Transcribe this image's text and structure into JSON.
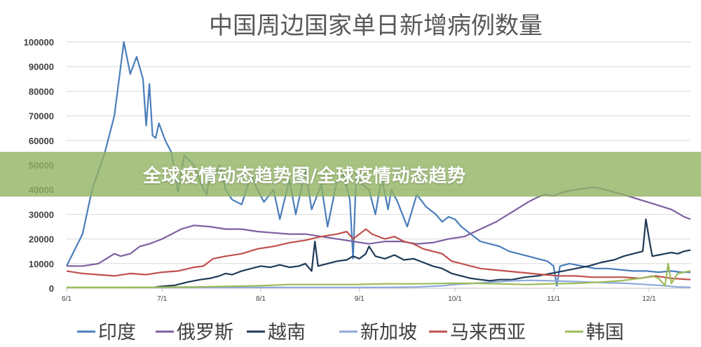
{
  "banner": {
    "text": "全球疫情动态趋势图/全球疫情动态趋势"
  },
  "chart_data": {
    "type": "line",
    "title": "中国周边国家单日新增病例数量",
    "ylim": [
      0,
      100000
    ],
    "yticks": [
      0,
      10000,
      20000,
      30000,
      40000,
      50000,
      60000,
      70000,
      80000,
      90000,
      100000
    ],
    "ytick_labels": [
      "0",
      "10000",
      "20000",
      "30000",
      "40000",
      "50000",
      "60000",
      "70000",
      "80000",
      "90000",
      "100000"
    ],
    "x_range_days": [
      0,
      196
    ],
    "xticks": [
      {
        "day": 0,
        "label": "6/1"
      },
      {
        "day": 30,
        "label": "7/1"
      },
      {
        "day": 61,
        "label": "8/1"
      },
      {
        "day": 92,
        "label": "9/1"
      },
      {
        "day": 122,
        "label": "10/1"
      },
      {
        "day": 153,
        "label": "11/1"
      },
      {
        "day": 183,
        "label": "12/1"
      }
    ],
    "grid": true,
    "legend_position": "bottom",
    "series": [
      {
        "name": "印度",
        "color": "#4A7EBB",
        "points": [
          [
            0,
            9000
          ],
          [
            5,
            22000
          ],
          [
            8,
            40000
          ],
          [
            12,
            55000
          ],
          [
            15,
            70000
          ],
          [
            18,
            100000
          ],
          [
            20,
            87000
          ],
          [
            22,
            94000
          ],
          [
            24,
            85000
          ],
          [
            25,
            66000
          ],
          [
            26,
            83000
          ],
          [
            27,
            62000
          ],
          [
            28,
            61000
          ],
          [
            29,
            67000
          ],
          [
            31,
            60000
          ],
          [
            33,
            55000
          ],
          [
            35,
            39000
          ],
          [
            37,
            54000
          ],
          [
            40,
            50000
          ],
          [
            42,
            43000
          ],
          [
            44,
            38000
          ],
          [
            45,
            46000
          ],
          [
            46,
            44000
          ],
          [
            48,
            50000
          ],
          [
            50,
            40000
          ],
          [
            52,
            36000
          ],
          [
            55,
            34000
          ],
          [
            58,
            46000
          ],
          [
            60,
            40000
          ],
          [
            62,
            35000
          ],
          [
            65,
            40000
          ],
          [
            67,
            28000
          ],
          [
            70,
            44000
          ],
          [
            72,
            30000
          ],
          [
            75,
            48000
          ],
          [
            77,
            32000
          ],
          [
            80,
            42000
          ],
          [
            82,
            25000
          ],
          [
            85,
            44000
          ],
          [
            87,
            46000
          ],
          [
            89,
            36000
          ],
          [
            90,
            12000
          ],
          [
            91,
            47000
          ],
          [
            93,
            42000
          ],
          [
            95,
            40000
          ],
          [
            97,
            30000
          ],
          [
            99,
            45000
          ],
          [
            101,
            32000
          ],
          [
            102,
            40000
          ],
          [
            104,
            35000
          ],
          [
            107,
            25000
          ],
          [
            110,
            38000
          ],
          [
            113,
            33000
          ],
          [
            116,
            30000
          ],
          [
            118,
            27000
          ],
          [
            120,
            29000
          ],
          [
            122,
            28000
          ],
          [
            124,
            25000
          ],
          [
            126,
            23000
          ],
          [
            128,
            21000
          ],
          [
            130,
            19000
          ],
          [
            133,
            18000
          ],
          [
            136,
            17000
          ],
          [
            139,
            15000
          ],
          [
            142,
            14000
          ],
          [
            145,
            13000
          ],
          [
            148,
            12000
          ],
          [
            151,
            11000
          ],
          [
            153,
            9000
          ],
          [
            154,
            1000
          ],
          [
            155,
            9000
          ],
          [
            158,
            10000
          ],
          [
            162,
            9000
          ],
          [
            166,
            8000
          ],
          [
            170,
            8000
          ],
          [
            174,
            7500
          ],
          [
            178,
            7000
          ],
          [
            182,
            7000
          ],
          [
            186,
            6500
          ],
          [
            190,
            7000
          ],
          [
            193,
            6500
          ],
          [
            196,
            6500
          ]
        ]
      },
      {
        "name": "俄罗斯",
        "color": "#7D60A0",
        "points": [
          [
            0,
            9000
          ],
          [
            5,
            9000
          ],
          [
            10,
            10000
          ],
          [
            15,
            14000
          ],
          [
            17,
            13000
          ],
          [
            20,
            14000
          ],
          [
            23,
            17000
          ],
          [
            26,
            18000
          ],
          [
            30,
            20000
          ],
          [
            33,
            22000
          ],
          [
            36,
            24000
          ],
          [
            40,
            25500
          ],
          [
            45,
            25000
          ],
          [
            50,
            24000
          ],
          [
            55,
            24000
          ],
          [
            60,
            23000
          ],
          [
            65,
            22500
          ],
          [
            70,
            22000
          ],
          [
            75,
            22000
          ],
          [
            80,
            21000
          ],
          [
            85,
            20000
          ],
          [
            90,
            19000
          ],
          [
            95,
            18000
          ],
          [
            100,
            19000
          ],
          [
            105,
            19000
          ],
          [
            110,
            18000
          ],
          [
            115,
            18500
          ],
          [
            120,
            20000
          ],
          [
            125,
            21000
          ],
          [
            130,
            24000
          ],
          [
            135,
            27000
          ],
          [
            140,
            31000
          ],
          [
            145,
            35000
          ],
          [
            148,
            37000
          ],
          [
            150,
            38000
          ],
          [
            153,
            37500
          ],
          [
            156,
            39000
          ],
          [
            160,
            40000
          ],
          [
            165,
            41000
          ],
          [
            168,
            40500
          ],
          [
            172,
            39000
          ],
          [
            175,
            38000
          ],
          [
            180,
            36000
          ],
          [
            185,
            34000
          ],
          [
            190,
            32000
          ],
          [
            194,
            29000
          ],
          [
            196,
            28000
          ]
        ]
      },
      {
        "name": "越南",
        "color": "#1F3A57",
        "points": [
          [
            28,
            500
          ],
          [
            30,
            800
          ],
          [
            34,
            1200
          ],
          [
            38,
            2500
          ],
          [
            42,
            3500
          ],
          [
            45,
            4000
          ],
          [
            48,
            5000
          ],
          [
            50,
            6000
          ],
          [
            52,
            5500
          ],
          [
            55,
            7000
          ],
          [
            58,
            8000
          ],
          [
            61,
            9000
          ],
          [
            64,
            8500
          ],
          [
            67,
            9500
          ],
          [
            70,
            8500
          ],
          [
            73,
            9000
          ],
          [
            75,
            10000
          ],
          [
            77,
            7000
          ],
          [
            78,
            19000
          ],
          [
            79,
            9000
          ],
          [
            82,
            10000
          ],
          [
            85,
            11000
          ],
          [
            88,
            11500
          ],
          [
            90,
            13000
          ],
          [
            92,
            12000
          ],
          [
            94,
            14000
          ],
          [
            95,
            17000
          ],
          [
            97,
            13000
          ],
          [
            100,
            12000
          ],
          [
            103,
            13500
          ],
          [
            106,
            11500
          ],
          [
            109,
            12000
          ],
          [
            112,
            10500
          ],
          [
            115,
            9000
          ],
          [
            118,
            8000
          ],
          [
            121,
            6000
          ],
          [
            124,
            5000
          ],
          [
            127,
            4000
          ],
          [
            130,
            3500
          ],
          [
            133,
            3000
          ],
          [
            136,
            3500
          ],
          [
            140,
            3500
          ],
          [
            144,
            4500
          ],
          [
            148,
            5000
          ],
          [
            152,
            6000
          ],
          [
            156,
            7000
          ],
          [
            160,
            8000
          ],
          [
            164,
            9000
          ],
          [
            168,
            10500
          ],
          [
            172,
            11500
          ],
          [
            175,
            13000
          ],
          [
            178,
            14000
          ],
          [
            181,
            15000
          ],
          [
            182,
            28000
          ],
          [
            183,
            20000
          ],
          [
            184,
            13000
          ],
          [
            186,
            13500
          ],
          [
            188,
            14000
          ],
          [
            190,
            14500
          ],
          [
            192,
            14000
          ],
          [
            194,
            15000
          ],
          [
            196,
            15500
          ]
        ]
      },
      {
        "name": "新加坡",
        "color": "#8EAADB",
        "points": [
          [
            0,
            300
          ],
          [
            20,
            300
          ],
          [
            40,
            300
          ],
          [
            60,
            300
          ],
          [
            80,
            300
          ],
          [
            100,
            300
          ],
          [
            110,
            500
          ],
          [
            118,
            1000
          ],
          [
            122,
            1500
          ],
          [
            128,
            2000
          ],
          [
            134,
            2500
          ],
          [
            140,
            3000
          ],
          [
            146,
            3200
          ],
          [
            152,
            3000
          ],
          [
            158,
            2800
          ],
          [
            164,
            2500
          ],
          [
            170,
            2200
          ],
          [
            176,
            2000
          ],
          [
            182,
            1500
          ],
          [
            188,
            1000
          ],
          [
            192,
            500
          ],
          [
            196,
            400
          ]
        ]
      },
      {
        "name": "马来西亚",
        "color": "#C0504D",
        "points": [
          [
            0,
            7000
          ],
          [
            5,
            6000
          ],
          [
            10,
            5500
          ],
          [
            15,
            5000
          ],
          [
            20,
            6000
          ],
          [
            25,
            5500
          ],
          [
            30,
            6500
          ],
          [
            35,
            7000
          ],
          [
            40,
            8500
          ],
          [
            43,
            9000
          ],
          [
            46,
            12000
          ],
          [
            50,
            13000
          ],
          [
            55,
            14000
          ],
          [
            60,
            16000
          ],
          [
            65,
            17000
          ],
          [
            70,
            18500
          ],
          [
            75,
            19500
          ],
          [
            80,
            21000
          ],
          [
            85,
            22000
          ],
          [
            88,
            23000
          ],
          [
            90,
            20000
          ],
          [
            92,
            22000
          ],
          [
            94,
            24000
          ],
          [
            96,
            22000
          ],
          [
            98,
            21000
          ],
          [
            100,
            20000
          ],
          [
            103,
            21000
          ],
          [
            106,
            19000
          ],
          [
            109,
            18000
          ],
          [
            112,
            16000
          ],
          [
            115,
            15000
          ],
          [
            118,
            14000
          ],
          [
            121,
            11000
          ],
          [
            124,
            10000
          ],
          [
            127,
            9000
          ],
          [
            130,
            8000
          ],
          [
            134,
            7500
          ],
          [
            138,
            7000
          ],
          [
            142,
            6500
          ],
          [
            146,
            6000
          ],
          [
            150,
            5500
          ],
          [
            155,
            5000
          ],
          [
            160,
            5000
          ],
          [
            165,
            4500
          ],
          [
            170,
            4500
          ],
          [
            175,
            4500
          ],
          [
            180,
            4000
          ],
          [
            185,
            5000
          ],
          [
            190,
            4000
          ],
          [
            196,
            3500
          ]
        ]
      },
      {
        "name": "韩国",
        "color": "#9BBB59",
        "points": [
          [
            0,
            300
          ],
          [
            20,
            300
          ],
          [
            40,
            500
          ],
          [
            60,
            1000
          ],
          [
            70,
            1500
          ],
          [
            80,
            1500
          ],
          [
            90,
            1500
          ],
          [
            100,
            1800
          ],
          [
            110,
            1800
          ],
          [
            120,
            2000
          ],
          [
            128,
            2000
          ],
          [
            136,
            1800
          ],
          [
            144,
            1500
          ],
          [
            152,
            1800
          ],
          [
            160,
            2000
          ],
          [
            168,
            2500
          ],
          [
            174,
            3000
          ],
          [
            180,
            4000
          ],
          [
            184,
            5000
          ],
          [
            186,
            4000
          ],
          [
            188,
            1000
          ],
          [
            189,
            10000
          ],
          [
            190,
            2000
          ],
          [
            192,
            6000
          ],
          [
            194,
            6500
          ],
          [
            196,
            7000
          ]
        ]
      }
    ]
  }
}
